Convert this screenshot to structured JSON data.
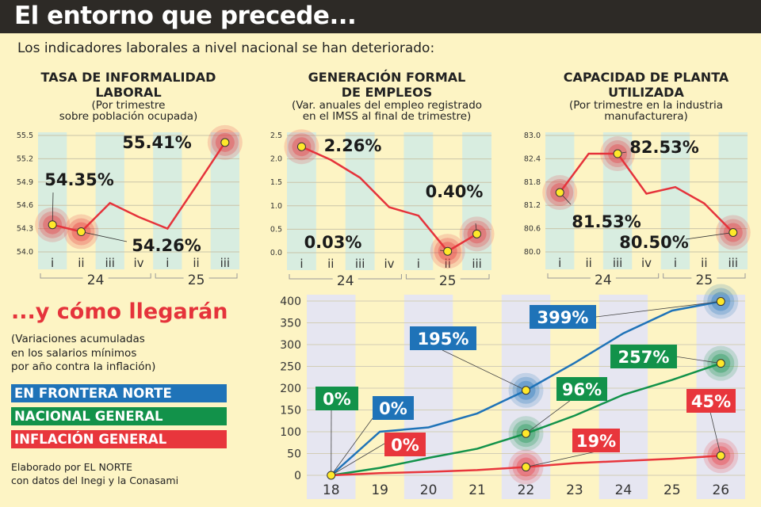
{
  "header": {
    "title": "El entorno que precede..."
  },
  "subtitle": "Los indicadores laborales a nivel nacional se han deteriorado:",
  "section2": {
    "title": "...y cómo llegarán",
    "note": [
      "(Variaciones acumuladas",
      "en los salarios mínimos",
      "por año contra la inflación)"
    ],
    "legend": [
      {
        "label": "EN FRONTERA NORTE",
        "color": "#1f73b8"
      },
      {
        "label": "NACIONAL GENERAL",
        "color": "#12924a"
      },
      {
        "label": "INFLACIÓN GENERAL",
        "color": "#e8363c"
      }
    ],
    "footer": [
      "Elaborado por EL NORTE",
      "con datos del Inegi y la Conasami"
    ]
  },
  "chart_data": [
    {
      "type": "line",
      "title": "TASA DE INFORMALIDAD LABORAL",
      "subtitle": [
        "(Por trimestre",
        "sobre población ocupada)"
      ],
      "categories": [
        "i",
        "ii",
        "iii",
        "iv",
        "i",
        "ii",
        "iii"
      ],
      "years": [
        "24",
        "25"
      ],
      "values": [
        54.35,
        54.26,
        54.63,
        54.45,
        54.3,
        54.85,
        55.41
      ],
      "ylim": [
        54.0,
        55.5
      ],
      "yticks": [
        "54.0",
        "54.3",
        "54.6",
        "54.9",
        "55.2",
        "55.5"
      ],
      "annotations": [
        {
          "index": 0,
          "text": "54.35%"
        },
        {
          "index": 1,
          "text": "54.26%"
        },
        {
          "index": 6,
          "text": "55.41%"
        }
      ],
      "line_color": "#e5333b"
    },
    {
      "type": "line",
      "title": "GENERACIÓN FORMAL DE EMPLEOS",
      "subtitle": [
        "(Var. anuales del empleo registrado",
        "en el IMSS al final de trimestre)"
      ],
      "categories": [
        "i",
        "ii",
        "iii",
        "iv",
        "i",
        "ii",
        "iii"
      ],
      "years": [
        "24",
        "25"
      ],
      "values": [
        2.26,
        1.98,
        1.6,
        0.97,
        0.79,
        0.03,
        0.4
      ],
      "ylim": [
        0,
        2.5
      ],
      "yticks": [
        "0.0",
        "0.5",
        "1.0",
        "1.5",
        "2.0",
        "2.5"
      ],
      "annotations": [
        {
          "index": 0,
          "text": "2.26%"
        },
        {
          "index": 5,
          "text": "0.03%"
        },
        {
          "index": 6,
          "text": "0.40%"
        }
      ],
      "line_color": "#e5333b"
    },
    {
      "type": "line",
      "title": "CAPACIDAD DE PLANTA UTILIZADA",
      "subtitle": [
        "(Por trimestre en la industria",
        "manufacturera)"
      ],
      "categories": [
        "i",
        "ii",
        "iii",
        "iv",
        "i",
        "ii",
        "iii"
      ],
      "years": [
        "24",
        "25"
      ],
      "values": [
        81.53,
        82.53,
        82.53,
        81.5,
        81.67,
        81.25,
        80.5
      ],
      "ylim": [
        80.0,
        83.0
      ],
      "yticks": [
        "80.0",
        "80.6",
        "81.2",
        "81.8",
        "82.4",
        "83.0"
      ],
      "annotations": [
        {
          "index": 0,
          "text": "81.53%"
        },
        {
          "index": 2,
          "text": "82.53%"
        },
        {
          "index": 6,
          "text": "80.50%"
        }
      ],
      "line_color": "#e5333b"
    },
    {
      "type": "line",
      "title": "Variaciones acumuladas en los salarios mínimos",
      "categories": [
        "18",
        "19",
        "20",
        "21",
        "22",
        "23",
        "24",
        "25",
        "26"
      ],
      "ylim": [
        0,
        400
      ],
      "yticks": [
        "0",
        "50",
        "100",
        "150",
        "200",
        "250",
        "300",
        "350",
        "400"
      ],
      "series": [
        {
          "name": "EN FRONTERA NORTE",
          "color": "#1f73b8",
          "values": [
            0,
            100,
            110,
            142,
            195,
            258,
            326,
            378,
            399
          ]
        },
        {
          "name": "NACIONAL GENERAL",
          "color": "#12924a",
          "values": [
            0,
            17,
            40,
            61,
            96,
            137,
            185,
            219,
            257
          ]
        },
        {
          "name": "INFLACIÓN GENERAL",
          "color": "#e8363c",
          "values": [
            0,
            5,
            8,
            12,
            19,
            28,
            33,
            38,
            45
          ]
        }
      ],
      "annotations": [
        {
          "series": 0,
          "index": 0,
          "text": "0%"
        },
        {
          "series": 1,
          "index": 0,
          "text": "0%"
        },
        {
          "series": 2,
          "index": 0,
          "text": "0%"
        },
        {
          "series": 0,
          "index": 4,
          "text": "195%"
        },
        {
          "series": 1,
          "index": 4,
          "text": "96%"
        },
        {
          "series": 2,
          "index": 4,
          "text": "19%"
        },
        {
          "series": 0,
          "index": 8,
          "text": "399%"
        },
        {
          "series": 1,
          "index": 8,
          "text": "257%"
        },
        {
          "series": 2,
          "index": 8,
          "text": "45%"
        }
      ]
    }
  ]
}
